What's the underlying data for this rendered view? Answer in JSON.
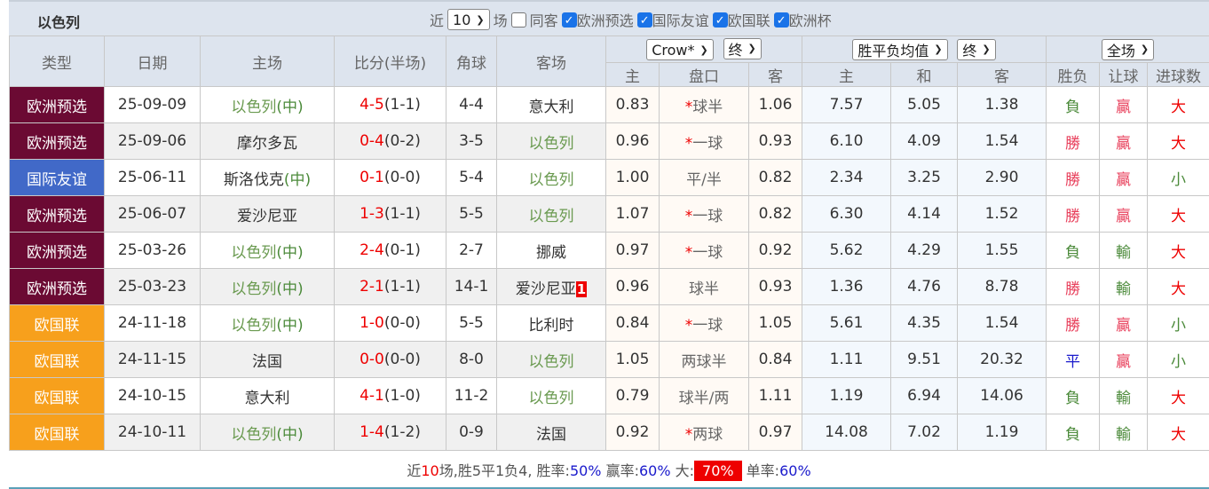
{
  "title": "以色列",
  "filters": {
    "near_label": "近",
    "count": "10",
    "count_unit": "场",
    "same_guest": "同客",
    "leagues": [
      {
        "label": "欧洲预选",
        "checked": true
      },
      {
        "label": "国际友谊",
        "checked": true
      },
      {
        "label": "欧国联",
        "checked": true
      },
      {
        "label": "欧洲杯",
        "checked": true
      }
    ]
  },
  "headers": {
    "type": "类型",
    "date": "日期",
    "home": "主场",
    "score": "比分(半场)",
    "corner": "角球",
    "away": "客场",
    "company": "Crow*",
    "company_stage": "终",
    "avg": "胜平负均值",
    "avg_stage": "终",
    "scope": "全场",
    "sub": [
      "主",
      "盘口",
      "客",
      "主",
      "和",
      "客",
      "胜负",
      "让球",
      "进球数"
    ]
  },
  "colors": {
    "欧洲预选": "#6b0a33",
    "国际友谊": "#4169c8",
    "欧国联": "#f7a01c"
  },
  "rows": [
    {
      "type": "欧洲预选",
      "date": "25-09-09",
      "home": "以色列",
      "home_n": "(中)",
      "hs": "4-5",
      "ht": "(1-1)",
      "corner": "4-4",
      "away": "意大利",
      "away_hl": false,
      "oh": "0.83",
      "line": "球半",
      "star": true,
      "oa": "1.06",
      "w": "7.57",
      "d": "5.05",
      "l": "1.38",
      "r1": "負",
      "r2": "贏",
      "r3": "大"
    },
    {
      "type": "欧洲预选",
      "date": "25-09-06",
      "home": "摩尔多瓦",
      "home_n": "",
      "hs": "0-4",
      "ht": "(0-2)",
      "corner": "3-5",
      "away": "以色列",
      "away_hl": true,
      "oh": "0.96",
      "line": "一球",
      "star": true,
      "oa": "0.93",
      "w": "6.10",
      "d": "4.09",
      "l": "1.54",
      "r1": "勝",
      "r2": "贏",
      "r3": "大"
    },
    {
      "type": "国际友谊",
      "date": "25-06-11",
      "home": "斯洛伐克",
      "home_n": "(中)",
      "hs": "0-1",
      "ht": "(0-0)",
      "corner": "5-4",
      "away": "以色列",
      "away_hl": true,
      "oh": "1.00",
      "line": "平/半",
      "star": false,
      "oa": "0.82",
      "w": "2.34",
      "d": "3.25",
      "l": "2.90",
      "r1": "勝",
      "r2": "贏",
      "r3": "小"
    },
    {
      "type": "欧洲预选",
      "date": "25-06-07",
      "home": "爱沙尼亚",
      "home_n": "",
      "hs": "1-3",
      "ht": "(1-1)",
      "corner": "5-5",
      "away": "以色列",
      "away_hl": true,
      "oh": "1.07",
      "line": "一球",
      "star": true,
      "oa": "0.82",
      "w": "6.30",
      "d": "4.14",
      "l": "1.52",
      "r1": "勝",
      "r2": "贏",
      "r3": "大"
    },
    {
      "type": "欧洲预选",
      "date": "25-03-26",
      "home": "以色列",
      "home_n": "(中)",
      "hs": "2-4",
      "ht": "(0-1)",
      "corner": "2-7",
      "away": "挪威",
      "away_hl": false,
      "oh": "0.97",
      "line": "一球",
      "star": true,
      "oa": "0.92",
      "w": "5.62",
      "d": "4.29",
      "l": "1.55",
      "r1": "負",
      "r2": "輸",
      "r3": "大"
    },
    {
      "type": "欧洲预选",
      "date": "25-03-23",
      "home": "以色列",
      "home_n": "(中)",
      "hs": "2-1",
      "ht": "(1-1)",
      "corner": "14-1",
      "away": "爱沙尼亚",
      "away_hl": false,
      "red_card": "1",
      "oh": "0.96",
      "line": "球半",
      "star": false,
      "oa": "0.93",
      "w": "1.36",
      "d": "4.76",
      "l": "8.78",
      "r1": "勝",
      "r2": "輸",
      "r3": "大"
    },
    {
      "type": "欧国联",
      "date": "24-11-18",
      "home": "以色列",
      "home_n": "(中)",
      "hs": "1-0",
      "ht": "(0-0)",
      "corner": "5-5",
      "away": "比利时",
      "away_hl": false,
      "oh": "0.84",
      "line": "一球",
      "star": true,
      "oa": "1.05",
      "w": "5.61",
      "d": "4.35",
      "l": "1.54",
      "r1": "勝",
      "r2": "贏",
      "r3": "小"
    },
    {
      "type": "欧国联",
      "date": "24-11-15",
      "home": "法国",
      "home_n": "",
      "hs": "0-0",
      "ht": "(0-0)",
      "corner": "8-0",
      "away": "以色列",
      "away_hl": true,
      "oh": "1.05",
      "line": "两球半",
      "star": false,
      "oa": "0.84",
      "w": "1.11",
      "d": "9.51",
      "l": "20.32",
      "r1": "平",
      "r2": "贏",
      "r3": "小"
    },
    {
      "type": "欧国联",
      "date": "24-10-15",
      "home": "意大利",
      "home_n": "",
      "hs": "4-1",
      "ht": "(1-0)",
      "corner": "11-2",
      "away": "以色列",
      "away_hl": true,
      "oh": "0.79",
      "line": "球半/两",
      "star": false,
      "oa": "1.11",
      "w": "1.19",
      "d": "6.94",
      "l": "14.06",
      "r1": "負",
      "r2": "輸",
      "r3": "大"
    },
    {
      "type": "欧国联",
      "date": "24-10-11",
      "home": "以色列",
      "home_n": "(中)",
      "hs": "1-4",
      "ht": "(1-2)",
      "corner": "0-9",
      "away": "法国",
      "away_hl": false,
      "oh": "0.92",
      "line": "两球",
      "star": true,
      "oa": "0.97",
      "w": "14.08",
      "d": "7.02",
      "l": "1.19",
      "r1": "負",
      "r2": "輸",
      "r3": "大"
    }
  ],
  "summary": {
    "p1": "近",
    "n": "10",
    "p2": "场,胜5平1负4, 胜率:",
    "win": "50%",
    "p3": " 赢率:",
    "cover": "60%",
    "p4": " 大:",
    "over": "70%",
    "p5": " 单率:",
    "odd": "60%"
  }
}
